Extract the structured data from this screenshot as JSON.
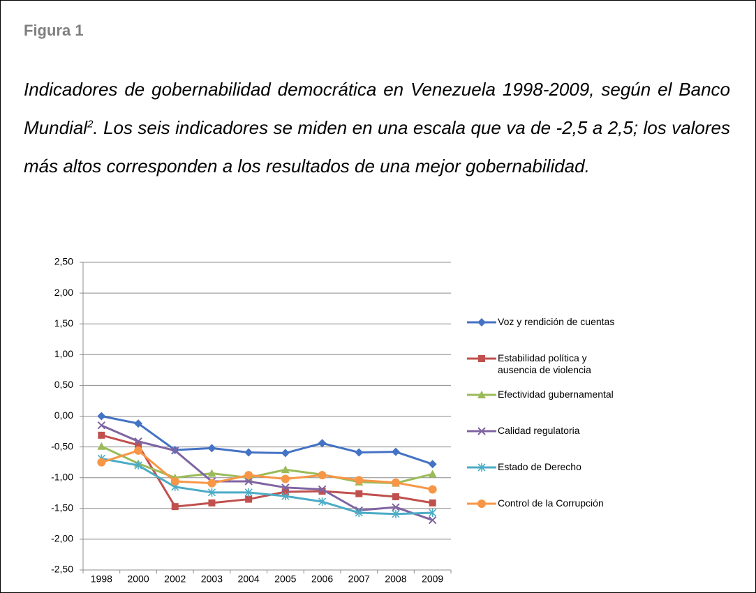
{
  "label": "Figura 1",
  "caption": [
    "Indicadores de gobernabilidad democrática en Venezuela 1998-2009, según el Banco Mundial",
    "2",
    ". Los seis indicadores se miden en una escala que va de  -2,5 a 2,5; los valores más altos corresponden a los resultados de una mejor gobernabilidad."
  ],
  "chart_data": {
    "type": "line",
    "categories": [
      "1998",
      "2000",
      "2002",
      "2003",
      "2004",
      "2005",
      "2006",
      "2007",
      "2008",
      "2009"
    ],
    "ylim": [
      -2.5,
      2.5
    ],
    "yticks": [
      {
        "value": 2.5,
        "label": "2,50"
      },
      {
        "value": 2,
        "label": "2,00"
      },
      {
        "value": 1.5,
        "label": "1,50"
      },
      {
        "value": 1,
        "label": "1,00"
      },
      {
        "value": 0.5,
        "label": "0,50"
      },
      {
        "value": 0,
        "label": "0,00"
      },
      {
        "value": -0.5,
        "label": "-0,50"
      },
      {
        "value": -1,
        "label": "-1,00"
      },
      {
        "value": -1.5,
        "label": "-1,50"
      },
      {
        "value": -2,
        "label": "-2,00"
      },
      {
        "value": -2.5,
        "label": "-2,50"
      }
    ],
    "grid": true,
    "series": [
      {
        "name": "Voz y rendición de cuentas",
        "color": "#4472c4",
        "marker": "diamond",
        "values": [
          0.0,
          -0.12,
          -0.55,
          -0.52,
          -0.59,
          -0.6,
          -0.44,
          -0.59,
          -0.58,
          -0.78
        ]
      },
      {
        "name": "Estabilidad política y\nausencia de violencia",
        "color": "#c0504d",
        "marker": "square",
        "values": [
          -0.31,
          -0.47,
          -1.47,
          -1.41,
          -1.35,
          -1.23,
          -1.22,
          -1.26,
          -1.31,
          -1.41
        ]
      },
      {
        "name": "Efectividad gubernamental",
        "color": "#9bbb59",
        "marker": "triangle",
        "values": [
          -0.49,
          -0.77,
          -1.0,
          -0.93,
          -1.0,
          -0.87,
          -0.95,
          -1.07,
          -1.09,
          -0.94
        ]
      },
      {
        "name": "Calidad regulatoria",
        "color": "#8064a2",
        "marker": "x",
        "values": [
          -0.15,
          -0.41,
          -0.56,
          -1.06,
          -1.06,
          -1.16,
          -1.19,
          -1.53,
          -1.48,
          -1.69
        ]
      },
      {
        "name": "Estado de Derecho",
        "color": "#4bacc6",
        "marker": "star",
        "values": [
          -0.69,
          -0.8,
          -1.15,
          -1.24,
          -1.24,
          -1.3,
          -1.39,
          -1.57,
          -1.59,
          -1.57
        ]
      },
      {
        "name": "Control de la Corrupción",
        "color": "#f79646",
        "marker": "circle",
        "values": [
          -0.75,
          -0.56,
          -1.06,
          -1.09,
          -0.96,
          -1.02,
          -0.96,
          -1.04,
          -1.08,
          -1.19
        ]
      }
    ]
  }
}
